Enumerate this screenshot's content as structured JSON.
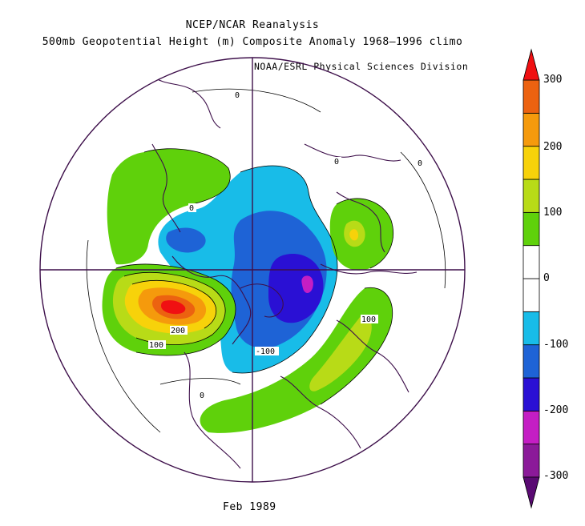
{
  "title_line1": "NCEP/NCAR Reanalysis",
  "title_line2": "500mb Geopotential Height (m) Composite Anomaly 1968–1996 climo",
  "credit": "NOAA/ESRL Physical Sciences Division",
  "footer": "Feb 1989",
  "map": {
    "projection": "north polar stereographic",
    "variable": "500mb geopotential height anomaly",
    "units": "m",
    "contour_labels": [
      "0",
      "0",
      "0",
      "0",
      "0",
      "100",
      "100",
      "200",
      "-100"
    ]
  },
  "colorbar": {
    "labels": [
      "300",
      "200",
      "100",
      "0",
      "-100",
      "-200",
      "-300"
    ],
    "levels": [
      -300,
      -250,
      -200,
      -150,
      -100,
      -50,
      0,
      50,
      100,
      150,
      200,
      250,
      300
    ],
    "colors": [
      "#5a0a73",
      "#8b1a99",
      "#c41ec4",
      "#2a10d4",
      "#1e63d6",
      "#18bce8",
      "#ffffff",
      "#ffffff",
      "#5fd10b",
      "#b8db17",
      "#f7d20a",
      "#f59a0c",
      "#ec6210",
      "#f01012"
    ]
  }
}
